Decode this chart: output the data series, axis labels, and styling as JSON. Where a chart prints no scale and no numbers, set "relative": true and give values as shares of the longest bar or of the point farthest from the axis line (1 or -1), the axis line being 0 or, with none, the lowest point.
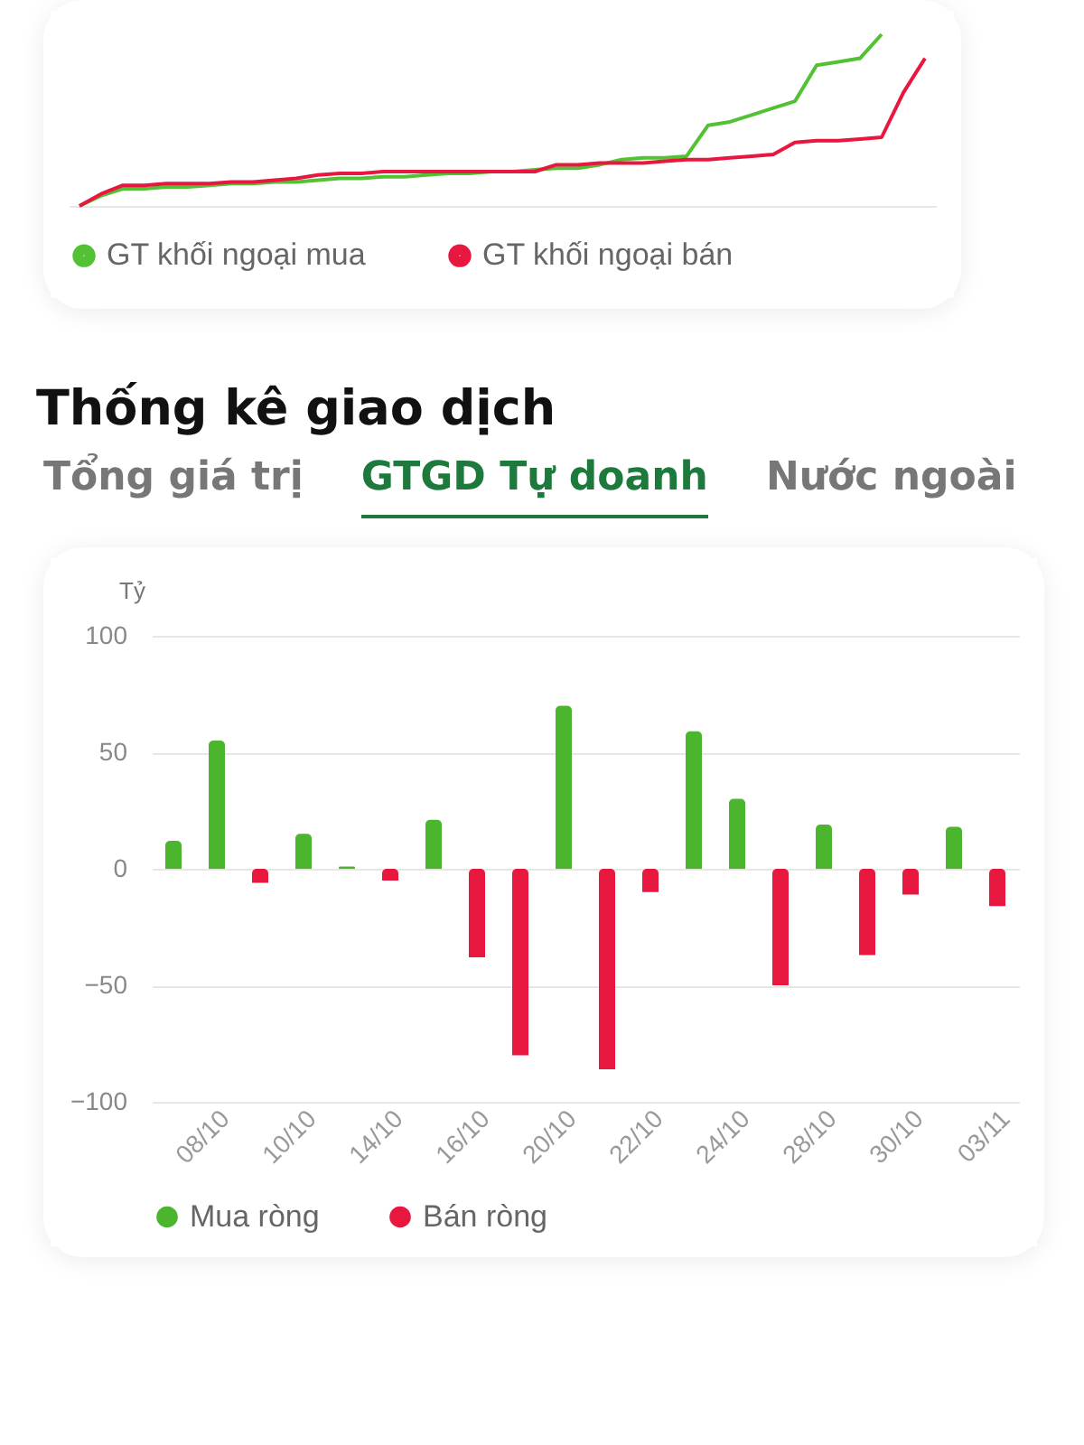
{
  "chart_data": [
    {
      "type": "line",
      "relative": true,
      "categories": [
        null,
        null,
        null,
        null,
        null,
        null,
        null,
        null,
        null,
        null,
        null,
        null,
        null,
        null,
        null,
        null,
        null,
        null,
        null,
        null,
        null,
        null,
        null,
        null,
        null,
        null,
        null,
        null,
        null,
        null,
        null,
        null,
        null,
        null,
        null,
        null,
        null,
        null,
        null,
        null
      ],
      "legend": "bottom",
      "marker": "none",
      "series": [
        {
          "name": "GT khối ngoại mua",
          "color": "#52c234",
          "values": [
            0,
            0.06,
            0.1,
            0.1,
            0.11,
            0.11,
            0.12,
            0.13,
            0.13,
            0.14,
            0.14,
            0.15,
            0.16,
            0.16,
            0.17,
            0.17,
            0.18,
            0.19,
            0.19,
            0.2,
            0.2,
            0.21,
            0.22,
            0.22,
            0.24,
            0.27,
            0.28,
            0.28,
            0.29,
            0.47,
            0.49,
            0.53,
            0.57,
            0.61,
            0.82,
            0.84,
            0.86,
            1,
            null,
            null
          ]
        },
        {
          "name": "GT khối ngoại bán",
          "color": "#e8173f",
          "values": [
            0,
            0.07,
            0.12,
            0.12,
            0.13,
            0.13,
            0.13,
            0.14,
            0.14,
            0.15,
            0.16,
            0.18,
            0.19,
            0.19,
            0.2,
            0.2,
            0.2,
            0.2,
            0.2,
            0.2,
            0.2,
            0.2,
            0.24,
            0.24,
            0.25,
            0.25,
            0.25,
            0.26,
            0.27,
            0.27,
            0.28,
            0.29,
            0.3,
            0.37,
            0.38,
            0.38,
            0.39,
            0.4,
            0.66,
            0.86
          ]
        }
      ]
    },
    {
      "type": "bar",
      "title": "Thống kê giao dịch",
      "annotations": [
        "Tổng giá trị",
        "GTGD Tự doanh",
        "Nước ngoài"
      ],
      "ylabel": "Tỷ",
      "categories": [
        null,
        "08/10",
        null,
        "10/10",
        null,
        "14/10",
        null,
        "16/10",
        null,
        "20/10",
        null,
        "22/10",
        null,
        "24/10",
        null,
        "28/10",
        null,
        "30/10",
        null,
        "03/11"
      ],
      "ylim": [
        -100,
        100
      ],
      "yticks": [
        -100,
        -50,
        0,
        50,
        100
      ],
      "grid": "y",
      "legend": "bottom",
      "series": [
        {
          "name": "Mua ròng",
          "color": "#4cb52e",
          "values": [
            12,
            55,
            null,
            15,
            1,
            null,
            21,
            null,
            null,
            70,
            null,
            null,
            59,
            30,
            null,
            19,
            null,
            null,
            18,
            null
          ]
        },
        {
          "name": "Bán ròng",
          "color": "#e8173f",
          "values": [
            null,
            null,
            -6,
            null,
            null,
            -5,
            null,
            -38,
            -80,
            null,
            -86,
            -10,
            null,
            null,
            -50,
            null,
            -37,
            -11,
            null,
            -16
          ]
        }
      ]
    }
  ]
}
